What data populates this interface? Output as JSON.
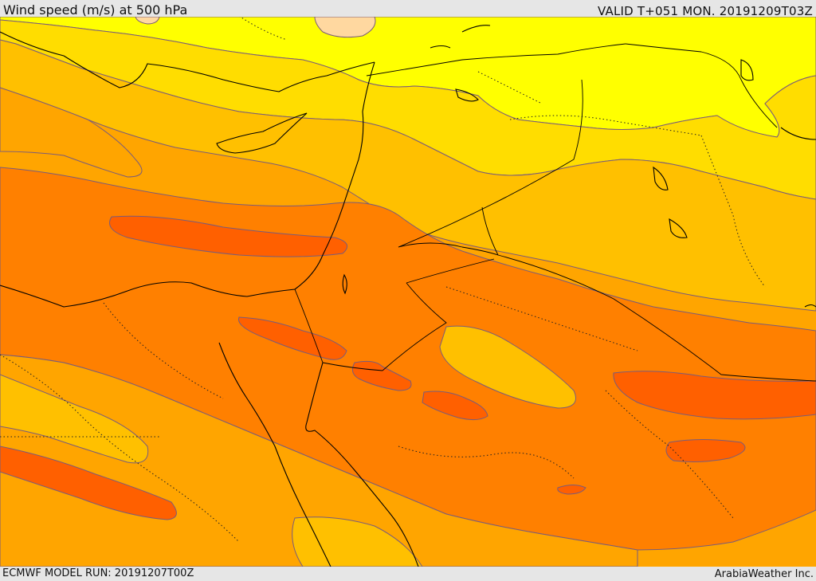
{
  "header": {
    "title": "Wind speed (m/s) at 500 hPa",
    "valid_time": "VALID T+051 MON. 20191209T03Z"
  },
  "footer": {
    "model_run": "ECMWF MODEL RUN: 20191207T00Z",
    "credit": "ArabiaWeather Inc."
  },
  "colors": {
    "light_yellow": "#ffff00",
    "yellow": "#ffdd00",
    "light_orange": "#ffc000",
    "orange": "#ffa500",
    "dark_orange": "#ff8000",
    "red_orange": "#ff6000",
    "pale": "#ffd8a0",
    "contour": "#7a5c7a",
    "coastline": "#000000"
  }
}
